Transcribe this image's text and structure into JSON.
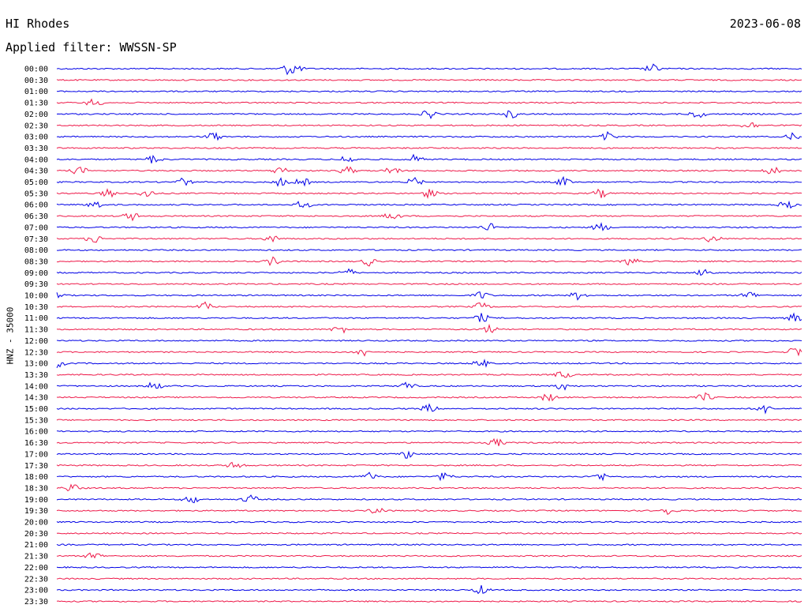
{
  "header": {
    "station": "HI Rhodes",
    "date": "2023-06-08",
    "filter": "Applied filter: WWSSN-SP"
  },
  "chart_data": {
    "type": "line",
    "title": "HI Rhodes",
    "subtitle": "Applied filter: WWSSN-SP",
    "date": "2023-06-08",
    "ylabel": "HNZ - 35000",
    "colors": [
      "#0000e6",
      "#ee1a4a"
    ],
    "rows": [
      {
        "time": "00:00",
        "events": [
          0.31,
          0.32,
          0.8
        ]
      },
      {
        "time": "00:30",
        "events": []
      },
      {
        "time": "01:00",
        "events": []
      },
      {
        "time": "01:30",
        "events": [
          0.05
        ]
      },
      {
        "time": "02:00",
        "events": [
          0.5,
          0.61,
          0.86
        ]
      },
      {
        "time": "02:30",
        "events": [
          0.93
        ]
      },
      {
        "time": "03:00",
        "events": [
          0.21,
          0.74,
          0.99
        ]
      },
      {
        "time": "03:30",
        "events": []
      },
      {
        "time": "04:00",
        "events": [
          0.13,
          0.39,
          0.48
        ]
      },
      {
        "time": "04:30",
        "events": [
          0.03,
          0.3,
          0.39,
          0.45,
          0.96
        ]
      },
      {
        "time": "05:00",
        "events": [
          0.17,
          0.3,
          0.33,
          0.48,
          0.68
        ]
      },
      {
        "time": "05:30",
        "events": [
          0.07,
          0.12,
          0.5,
          0.73
        ]
      },
      {
        "time": "06:00",
        "events": [
          0.05,
          0.33,
          0.98
        ]
      },
      {
        "time": "06:30",
        "events": [
          0.1,
          0.45
        ]
      },
      {
        "time": "07:00",
        "events": [
          0.58,
          0.73
        ]
      },
      {
        "time": "07:30",
        "events": [
          0.05,
          0.29,
          0.88
        ]
      },
      {
        "time": "08:00",
        "events": []
      },
      {
        "time": "08:30",
        "events": [
          0.29,
          0.42,
          0.77
        ]
      },
      {
        "time": "09:00",
        "events": [
          0.39,
          0.87
        ]
      },
      {
        "time": "09:30",
        "events": []
      },
      {
        "time": "10:00",
        "events": [
          0.0,
          0.57,
          0.7,
          0.93
        ]
      },
      {
        "time": "10:30",
        "events": [
          0.2,
          0.57
        ]
      },
      {
        "time": "11:00",
        "events": [
          0.57,
          0.99
        ]
      },
      {
        "time": "11:30",
        "events": [
          0.38,
          0.58
        ]
      },
      {
        "time": "12:00",
        "events": []
      },
      {
        "time": "12:30",
        "events": [
          0.41,
          0.99
        ]
      },
      {
        "time": "13:00",
        "events": [
          0.0,
          0.57
        ]
      },
      {
        "time": "13:30",
        "events": [
          0.68
        ]
      },
      {
        "time": "14:00",
        "events": [
          0.13,
          0.47,
          0.68
        ]
      },
      {
        "time": "14:30",
        "events": [
          0.66,
          0.87
        ]
      },
      {
        "time": "15:00",
        "events": [
          0.5,
          0.95
        ]
      },
      {
        "time": "15:30",
        "events": []
      },
      {
        "time": "16:00",
        "events": []
      },
      {
        "time": "16:30",
        "events": [
          0.59
        ]
      },
      {
        "time": "17:00",
        "events": [
          0.47
        ]
      },
      {
        "time": "17:30",
        "events": [
          0.24
        ]
      },
      {
        "time": "18:00",
        "events": [
          0.42,
          0.52,
          0.73
        ]
      },
      {
        "time": "18:30",
        "events": [
          0.02
        ]
      },
      {
        "time": "19:00",
        "events": [
          0.18,
          0.26
        ]
      },
      {
        "time": "19:30",
        "events": [
          0.43,
          0.82
        ]
      },
      {
        "time": "20:00",
        "events": []
      },
      {
        "time": "20:30",
        "events": []
      },
      {
        "time": "21:00",
        "events": []
      },
      {
        "time": "21:30",
        "events": [
          0.05
        ]
      },
      {
        "time": "22:00",
        "events": []
      },
      {
        "time": "22:30",
        "events": []
      },
      {
        "time": "23:00",
        "events": [
          0.57
        ]
      },
      {
        "time": "23:30",
        "events": []
      }
    ]
  }
}
